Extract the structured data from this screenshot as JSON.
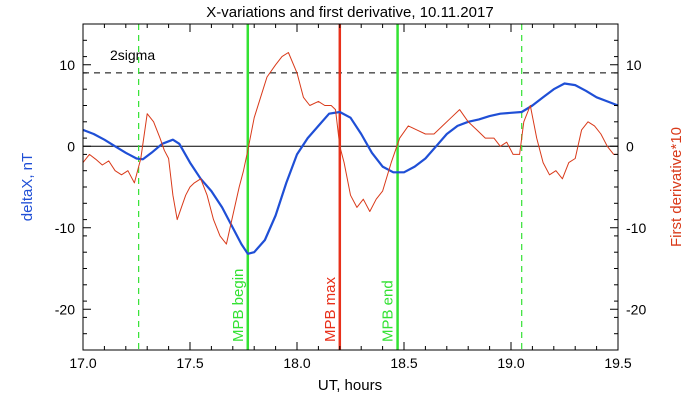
{
  "chart_data": {
    "type": "line",
    "title": "X-variations and first derivative, 10.11.2017",
    "xlabel": "UT, hours",
    "ylabel_left": "deltaX, nT",
    "ylabel_right": "First derivative*10",
    "xlim": [
      17.0,
      19.5
    ],
    "ylim": [
      -25,
      15
    ],
    "x_ticks": [
      "17.0",
      "17.5",
      "18.0",
      "18.5",
      "19.0",
      "19.5"
    ],
    "x_tick_values": [
      17.0,
      17.5,
      18.0,
      18.5,
      19.0,
      19.5
    ],
    "y_ticks": [
      "-20",
      "-10",
      "0",
      "10"
    ],
    "y_tick_values": [
      -20,
      -10,
      0,
      10
    ],
    "threshold": {
      "label": "2sigma",
      "value": 9
    },
    "zero_line": 0,
    "grid": false,
    "colors": {
      "deltax": "#1f4fd6",
      "derivative": "#d93a1a",
      "mpb_bounds": "#33e233",
      "mpb_max": "#e8301a"
    },
    "markers": [
      {
        "x": 17.26,
        "style": "dashed",
        "color": "#33e233",
        "label": ""
      },
      {
        "x": 17.77,
        "style": "solid",
        "color": "#33e233",
        "label": "MPB begin"
      },
      {
        "x": 18.2,
        "style": "solid",
        "color": "#e8301a",
        "label": "MPB max"
      },
      {
        "x": 18.47,
        "style": "solid",
        "color": "#33e233",
        "label": "MPB end"
      },
      {
        "x": 19.05,
        "style": "dashed",
        "color": "#33e233",
        "label": ""
      }
    ],
    "series": [
      {
        "values": [
          [
            17.0,
            2.0
          ],
          [
            17.05,
            1.5
          ],
          [
            17.1,
            0.8
          ],
          [
            17.15,
            0.0
          ],
          [
            17.2,
            -0.8
          ],
          [
            17.25,
            -1.5
          ],
          [
            17.28,
            -1.6
          ],
          [
            17.32,
            -0.8
          ],
          [
            17.37,
            0.3
          ],
          [
            17.42,
            0.8
          ],
          [
            17.45,
            0.3
          ],
          [
            17.5,
            -2.0
          ],
          [
            17.55,
            -4.0
          ],
          [
            17.6,
            -5.5
          ],
          [
            17.65,
            -7.5
          ],
          [
            17.7,
            -10.0
          ],
          [
            17.74,
            -12.0
          ],
          [
            17.77,
            -13.2
          ],
          [
            17.8,
            -13.0
          ],
          [
            17.85,
            -11.5
          ],
          [
            17.9,
            -8.5
          ],
          [
            17.95,
            -4.5
          ],
          [
            18.0,
            -1.0
          ],
          [
            18.05,
            1.0
          ],
          [
            18.1,
            2.5
          ],
          [
            18.15,
            4.0
          ],
          [
            18.2,
            4.2
          ],
          [
            18.25,
            3.5
          ],
          [
            18.3,
            1.5
          ],
          [
            18.35,
            -0.8
          ],
          [
            18.4,
            -2.5
          ],
          [
            18.45,
            -3.2
          ],
          [
            18.5,
            -3.2
          ],
          [
            18.55,
            -2.5
          ],
          [
            18.6,
            -1.5
          ],
          [
            18.65,
            0.0
          ],
          [
            18.7,
            1.5
          ],
          [
            18.75,
            2.5
          ],
          [
            18.8,
            3.0
          ],
          [
            18.85,
            3.3
          ],
          [
            18.9,
            3.7
          ],
          [
            18.95,
            4.0
          ],
          [
            19.0,
            4.1
          ],
          [
            19.05,
            4.2
          ],
          [
            19.1,
            5.0
          ],
          [
            19.15,
            6.0
          ],
          [
            19.2,
            7.0
          ],
          [
            19.25,
            7.7
          ],
          [
            19.3,
            7.5
          ],
          [
            19.35,
            6.8
          ],
          [
            19.4,
            6.0
          ],
          [
            19.45,
            5.5
          ],
          [
            19.5,
            5.0
          ]
        ]
      },
      {
        "values": [
          [
            17.0,
            -2.0
          ],
          [
            17.03,
            -1.0
          ],
          [
            17.06,
            -1.6
          ],
          [
            17.09,
            -2.3
          ],
          [
            17.12,
            -1.8
          ],
          [
            17.15,
            -3.0
          ],
          [
            17.18,
            -3.5
          ],
          [
            17.21,
            -3.0
          ],
          [
            17.24,
            -4.5
          ],
          [
            17.27,
            -1.5
          ],
          [
            17.3,
            4.0
          ],
          [
            17.33,
            3.0
          ],
          [
            17.36,
            1.0
          ],
          [
            17.38,
            -0.5
          ],
          [
            17.4,
            -1.5
          ],
          [
            17.42,
            -6.0
          ],
          [
            17.44,
            -9.0
          ],
          [
            17.46,
            -7.5
          ],
          [
            17.48,
            -6.0
          ],
          [
            17.5,
            -5.0
          ],
          [
            17.52,
            -4.5
          ],
          [
            17.55,
            -4.0
          ],
          [
            17.58,
            -6.0
          ],
          [
            17.61,
            -9.0
          ],
          [
            17.64,
            -11.0
          ],
          [
            17.67,
            -12.0
          ],
          [
            17.7,
            -8.5
          ],
          [
            17.73,
            -5.0
          ],
          [
            17.75,
            -3.0
          ],
          [
            17.77,
            -0.5
          ],
          [
            17.8,
            3.5
          ],
          [
            17.83,
            6.0
          ],
          [
            17.86,
            8.5
          ],
          [
            17.9,
            10.0
          ],
          [
            17.93,
            11.0
          ],
          [
            17.96,
            11.5
          ],
          [
            18.0,
            9.0
          ],
          [
            18.03,
            6.0
          ],
          [
            18.06,
            5.0
          ],
          [
            18.1,
            5.5
          ],
          [
            18.13,
            5.0
          ],
          [
            18.16,
            5.0
          ],
          [
            18.18,
            4.5
          ],
          [
            18.2,
            0.0
          ],
          [
            18.22,
            -2.0
          ],
          [
            18.25,
            -6.0
          ],
          [
            18.28,
            -7.5
          ],
          [
            18.31,
            -6.5
          ],
          [
            18.34,
            -8.0
          ],
          [
            18.37,
            -6.5
          ],
          [
            18.4,
            -5.5
          ],
          [
            18.44,
            -2.0
          ],
          [
            18.48,
            1.0
          ],
          [
            18.52,
            2.5
          ],
          [
            18.56,
            2.0
          ],
          [
            18.6,
            1.5
          ],
          [
            18.64,
            1.5
          ],
          [
            18.68,
            2.5
          ],
          [
            18.72,
            3.5
          ],
          [
            18.76,
            4.5
          ],
          [
            18.8,
            3.0
          ],
          [
            18.84,
            2.0
          ],
          [
            18.88,
            1.0
          ],
          [
            18.92,
            1.0
          ],
          [
            18.95,
            0.0
          ],
          [
            18.98,
            0.5
          ],
          [
            19.01,
            -1.0
          ],
          [
            19.04,
            -1.0
          ],
          [
            19.06,
            3.0
          ],
          [
            19.09,
            5.0
          ],
          [
            19.12,
            1.0
          ],
          [
            19.15,
            -2.0
          ],
          [
            19.18,
            -3.5
          ],
          [
            19.21,
            -3.0
          ],
          [
            19.24,
            -4.0
          ],
          [
            19.27,
            -2.0
          ],
          [
            19.3,
            -1.5
          ],
          [
            19.33,
            2.0
          ],
          [
            19.36,
            3.0
          ],
          [
            19.39,
            2.5
          ],
          [
            19.42,
            1.5
          ],
          [
            19.45,
            0.0
          ],
          [
            19.48,
            -1.0
          ],
          [
            19.5,
            -1.0
          ]
        ]
      }
    ]
  }
}
